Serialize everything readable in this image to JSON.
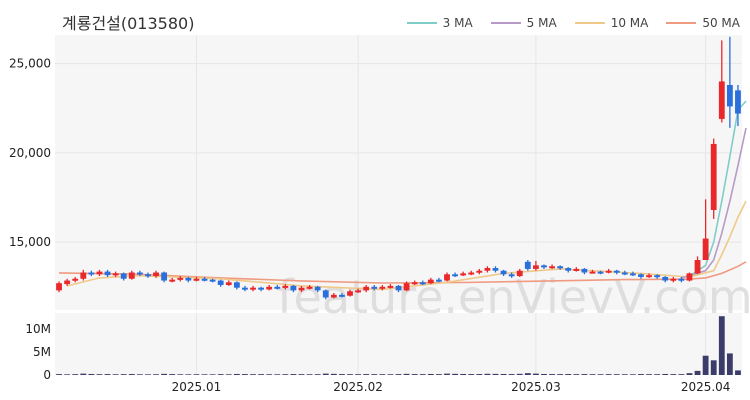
{
  "header": {
    "title": "계룡건설(013580)"
  },
  "legend": [
    {
      "label": "3 MA",
      "color": "#7fcdc9"
    },
    {
      "label": "5 MA",
      "color": "#b89ac8"
    },
    {
      "label": "10 MA",
      "color": "#f0c98a"
    },
    {
      "label": "50 MA",
      "color": "#f09a80"
    }
  ],
  "watermark": "feature.enVievV.com",
  "colors": {
    "up": "#e8282b",
    "down": "#2a6fdb",
    "volume": "#3c3c6a",
    "panel_bg": "#f6f6f6"
  },
  "chart_data": {
    "type": "candlestick",
    "title": "계룡건설(013580)",
    "price_axis": {
      "ylim": [
        11200,
        26600
      ],
      "ticks": [
        15000,
        20000,
        25000
      ],
      "tick_labels": [
        "15,000",
        "20,000",
        "25,000"
      ]
    },
    "volume_axis": {
      "ylim": [
        0,
        13500000
      ],
      "ticks": [
        0,
        5000000,
        10000000
      ],
      "tick_labels": [
        "0",
        "5M",
        "10M"
      ]
    },
    "x_ticks": [
      {
        "index": 17,
        "label": "2025.01"
      },
      {
        "index": 37,
        "label": "2025.02"
      },
      {
        "index": 59,
        "label": "2025.03"
      },
      {
        "index": 80,
        "label": "2025.04"
      }
    ],
    "candles": [
      [
        12300,
        12700,
        12800,
        12200
      ],
      [
        12650,
        12850,
        12950,
        12550
      ],
      [
        12850,
        12950,
        13050,
        12750
      ],
      [
        12950,
        13300,
        13450,
        12850
      ],
      [
        13300,
        13200,
        13400,
        13100
      ],
      [
        13200,
        13350,
        13450,
        13100
      ],
      [
        13350,
        13150,
        13450,
        13050
      ],
      [
        13150,
        13250,
        13350,
        13050
      ],
      [
        13250,
        12950,
        13300,
        12850
      ],
      [
        12950,
        13300,
        13400,
        12900
      ],
      [
        13300,
        13200,
        13400,
        13100
      ],
      [
        13200,
        13100,
        13300,
        13000
      ],
      [
        13100,
        13300,
        13400,
        13000
      ],
      [
        13300,
        12850,
        13350,
        12750
      ],
      [
        12850,
        12900,
        13000,
        12750
      ],
      [
        12900,
        13000,
        13100,
        12800
      ],
      [
        13000,
        12850,
        13050,
        12750
      ],
      [
        12850,
        12950,
        13050,
        12800
      ],
      [
        12950,
        12900,
        13050,
        12800
      ],
      [
        12900,
        12850,
        12950,
        12750
      ],
      [
        12850,
        12600,
        12900,
        12500
      ],
      [
        12600,
        12750,
        12850,
        12550
      ],
      [
        12750,
        12450,
        12800,
        12350
      ],
      [
        12450,
        12350,
        12550,
        12250
      ],
      [
        12350,
        12450,
        12550,
        12250
      ],
      [
        12450,
        12350,
        12500,
        12250
      ],
      [
        12350,
        12500,
        12600,
        12300
      ],
      [
        12500,
        12450,
        12600,
        12350
      ],
      [
        12450,
        12550,
        12650,
        12350
      ],
      [
        12550,
        12300,
        12600,
        12200
      ],
      [
        12300,
        12450,
        12550,
        12200
      ],
      [
        12450,
        12500,
        12600,
        12350
      ],
      [
        12500,
        12300,
        12550,
        12200
      ],
      [
        12300,
        11900,
        12350,
        11800
      ],
      [
        11900,
        12050,
        12150,
        11850
      ],
      [
        12050,
        12000,
        12150,
        11900
      ],
      [
        12000,
        12250,
        12350,
        11950
      ],
      [
        12250,
        12300,
        12400,
        12150
      ],
      [
        12300,
        12500,
        12600,
        12200
      ],
      [
        12500,
        12400,
        12600,
        12300
      ],
      [
        12400,
        12500,
        12600,
        12300
      ],
      [
        12500,
        12550,
        12650,
        12400
      ],
      [
        12550,
        12300,
        12600,
        12200
      ],
      [
        12300,
        12700,
        12800,
        12250
      ],
      [
        12700,
        12750,
        12850,
        12600
      ],
      [
        12750,
        12700,
        12850,
        12600
      ],
      [
        12700,
        12900,
        13000,
        12650
      ],
      [
        12900,
        12850,
        13000,
        12750
      ],
      [
        12850,
        13200,
        13300,
        12800
      ],
      [
        13200,
        13150,
        13300,
        13050
      ],
      [
        13150,
        13250,
        13350,
        13100
      ],
      [
        13250,
        13300,
        13400,
        13150
      ],
      [
        13300,
        13400,
        13500,
        13200
      ],
      [
        13400,
        13550,
        13650,
        13300
      ],
      [
        13550,
        13400,
        13650,
        13300
      ],
      [
        13400,
        13200,
        13450,
        13100
      ],
      [
        13200,
        13100,
        13300,
        13000
      ],
      [
        13100,
        13400,
        13500,
        13050
      ],
      [
        13900,
        13500,
        14000,
        13400
      ],
      [
        13500,
        13700,
        13950,
        13400
      ],
      [
        13700,
        13600,
        13750,
        13500
      ],
      [
        13600,
        13650,
        13750,
        13500
      ],
      [
        13650,
        13550,
        13700,
        13450
      ],
      [
        13550,
        13400,
        13600,
        13300
      ],
      [
        13400,
        13500,
        13600,
        13350
      ],
      [
        13500,
        13300,
        13550,
        13200
      ],
      [
        13300,
        13350,
        13450,
        13250
      ],
      [
        13350,
        13300,
        13400,
        13200
      ],
      [
        13300,
        13400,
        13500,
        13250
      ],
      [
        13400,
        13300,
        13450,
        13200
      ],
      [
        13300,
        13250,
        13400,
        13150
      ],
      [
        13250,
        13200,
        13350,
        13100
      ],
      [
        13200,
        13050,
        13250,
        12950
      ],
      [
        13050,
        13150,
        13250,
        13000
      ],
      [
        13150,
        13050,
        13200,
        12950
      ],
      [
        13050,
        12850,
        13100,
        12750
      ],
      [
        12850,
        12950,
        13050,
        12750
      ],
      [
        12950,
        12850,
        13050,
        12750
      ],
      [
        12850,
        13250,
        13300,
        12800
      ],
      [
        13250,
        14000,
        14200,
        13200
      ],
      [
        14000,
        15200,
        17400,
        14800
      ],
      [
        16800,
        20500,
        20800,
        16300
      ],
      [
        21900,
        24000,
        26300,
        21700
      ],
      [
        23800,
        22600,
        26500,
        21400
      ],
      [
        23500,
        22200,
        23800,
        21500
      ]
    ],
    "volumes": [
      200000,
      150000,
      180000,
      300000,
      220000,
      170000,
      200000,
      160000,
      180000,
      210000,
      150000,
      140000,
      160000,
      250000,
      200000,
      150000,
      140000,
      160000,
      150000,
      140000,
      180000,
      150000,
      220000,
      200000,
      170000,
      180000,
      160000,
      150000,
      170000,
      200000,
      180000,
      160000,
      170000,
      300000,
      250000,
      200000,
      180000,
      170000,
      200000,
      180000,
      170000,
      160000,
      190000,
      250000,
      200000,
      180000,
      220000,
      190000,
      300000,
      250000,
      220000,
      200000,
      210000,
      260000,
      240000,
      220000,
      200000,
      250000,
      400000,
      300000,
      220000,
      200000,
      190000,
      210000,
      180000,
      200000,
      170000,
      160000,
      180000,
      170000,
      160000,
      150000,
      200000,
      180000,
      170000,
      220000,
      190000,
      180000,
      400000,
      900000,
      4200000,
      3200000,
      12800000,
      4700000,
      1000000
    ],
    "ma3": [
      [
        78,
        13100
      ],
      [
        80,
        13700
      ],
      [
        81,
        15000
      ],
      [
        82,
        17300
      ],
      [
        83,
        19800
      ],
      [
        84,
        22400
      ],
      [
        85,
        22900
      ]
    ],
    "ma5": [
      [
        77,
        13000
      ],
      [
        80,
        13400
      ],
      [
        81,
        14000
      ],
      [
        82,
        15500
      ],
      [
        83,
        17300
      ],
      [
        84,
        19300
      ],
      [
        85,
        21400
      ]
    ],
    "ma10": [
      [
        1,
        12550
      ],
      [
        5,
        13000
      ],
      [
        10,
        13120
      ],
      [
        20,
        12950
      ],
      [
        30,
        12550
      ],
      [
        40,
        12350
      ],
      [
        48,
        12750
      ],
      [
        55,
        13250
      ],
      [
        62,
        13500
      ],
      [
        72,
        13250
      ],
      [
        78,
        13050
      ],
      [
        81,
        13400
      ],
      [
        82,
        14300
      ],
      [
        83,
        15300
      ],
      [
        84,
        16400
      ],
      [
        85,
        17300
      ]
    ],
    "ma50": [
      [
        0,
        13280
      ],
      [
        10,
        13200
      ],
      [
        20,
        13000
      ],
      [
        30,
        12830
      ],
      [
        40,
        12710
      ],
      [
        50,
        12740
      ],
      [
        60,
        12820
      ],
      [
        70,
        12900
      ],
      [
        78,
        12930
      ],
      [
        80,
        13000
      ],
      [
        82,
        13250
      ],
      [
        84,
        13650
      ],
      [
        85,
        13900
      ]
    ]
  }
}
